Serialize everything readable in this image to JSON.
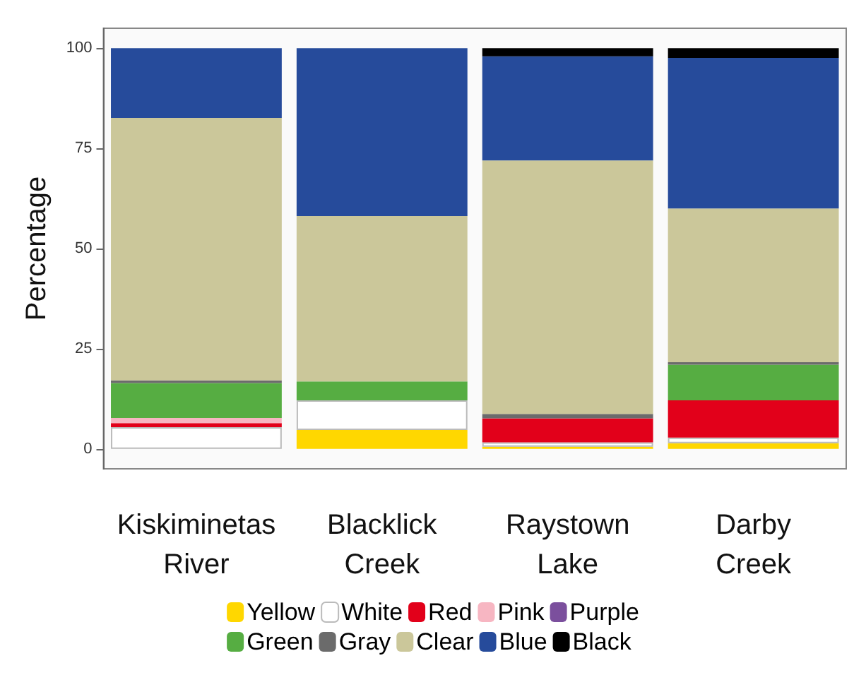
{
  "chart_data": {
    "type": "bar",
    "stacked": true,
    "ylabel": "Percentage",
    "categories": [
      "Kiskiminetas\nRiver",
      "Blacklick\nCreek",
      "Raystown\nLake",
      "Darby\nCreek"
    ],
    "ylim": [
      -5,
      105
    ],
    "yticks": [
      0,
      25,
      50,
      75,
      100
    ],
    "grid": false,
    "legend": "bottom",
    "series": [
      {
        "name": "Yellow",
        "color": "#ffd700",
        "values": [
          0,
          4.7,
          0.5,
          1.4
        ]
      },
      {
        "name": "White",
        "color": "#ffffff",
        "values": [
          5.4,
          7.4,
          1.1,
          1.4
        ]
      },
      {
        "name": "Red",
        "color": "#e2001a",
        "values": [
          1,
          0,
          6,
          9.3
        ]
      },
      {
        "name": "Pink",
        "color": "#f7b6c2",
        "values": [
          1.3,
          0,
          0,
          0
        ]
      },
      {
        "name": "Purple",
        "color": "#7b4f9d",
        "values": [
          0,
          0,
          0,
          0
        ]
      },
      {
        "name": "Green",
        "color": "#56ad42",
        "values": [
          8.7,
          4.7,
          0,
          8.9
        ]
      },
      {
        "name": "Gray",
        "color": "#6b6b6b",
        "values": [
          0.7,
          0,
          1.1,
          0.6
        ]
      },
      {
        "name": "Clear",
        "color": "#cbc79a",
        "values": [
          65.5,
          41.3,
          63.3,
          38.4
        ]
      },
      {
        "name": "Blue",
        "color": "#264b9b",
        "values": [
          17.4,
          41.9,
          26,
          37.6
        ]
      },
      {
        "name": "Black",
        "color": "#000000",
        "values": [
          0,
          0,
          2,
          2.4
        ]
      }
    ]
  }
}
